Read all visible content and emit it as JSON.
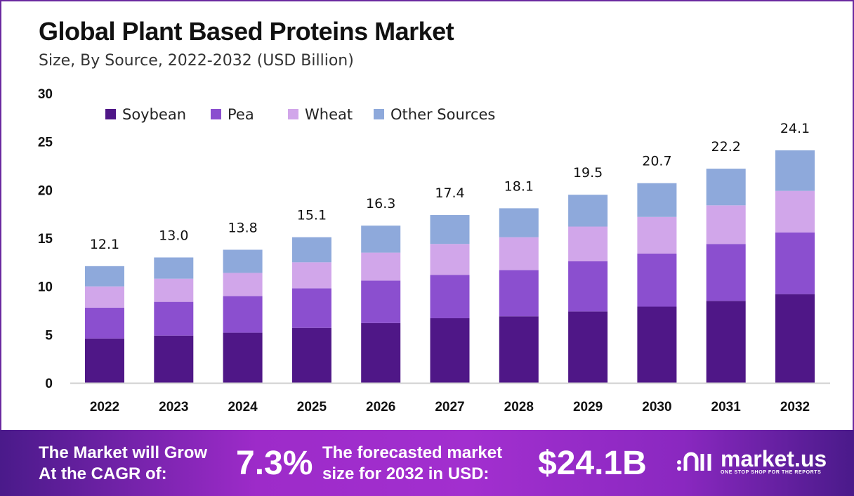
{
  "chart_data": {
    "type": "bar",
    "stacked": true,
    "title": "Global Plant Based Proteins Market",
    "subtitle": "Size, By Source, 2022-2032 (USD Billion)",
    "categories": [
      "2022",
      "2023",
      "2024",
      "2025",
      "2026",
      "2027",
      "2028",
      "2029",
      "2030",
      "2031",
      "2032"
    ],
    "series": [
      {
        "name": "Soybean",
        "color": "#4f1787",
        "values": [
          4.6,
          4.9,
          5.2,
          5.7,
          6.2,
          6.7,
          6.9,
          7.4,
          7.9,
          8.5,
          9.2
        ]
      },
      {
        "name": "Pea",
        "color": "#8b4fcf",
        "values": [
          3.2,
          3.5,
          3.8,
          4.1,
          4.4,
          4.5,
          4.8,
          5.2,
          5.5,
          5.9,
          6.4
        ]
      },
      {
        "name": "Wheat",
        "color": "#d1a6ea",
        "values": [
          2.2,
          2.4,
          2.4,
          2.7,
          2.9,
          3.2,
          3.4,
          3.6,
          3.8,
          4.0,
          4.3
        ]
      },
      {
        "name": "Other Sources",
        "color": "#8ea9db",
        "values": [
          2.1,
          2.2,
          2.4,
          2.6,
          2.8,
          3.0,
          3.0,
          3.3,
          3.5,
          3.8,
          4.2
        ]
      }
    ],
    "totals": [
      "12.1",
      "13.0",
      "13.8",
      "15.1",
      "16.3",
      "17.4",
      "18.1",
      "19.5",
      "20.7",
      "22.2",
      "24.1"
    ],
    "yticks": [
      "0",
      "5",
      "10",
      "15",
      "20",
      "25",
      "30"
    ],
    "ylim": [
      0,
      30
    ],
    "grid": false,
    "legend_position": "top-left"
  },
  "footer": {
    "cagr_label_line1": "The Market will Grow",
    "cagr_label_line2": "At the CAGR of:",
    "cagr_value": "7.3%",
    "forecast_label_line1": "The forecasted market",
    "forecast_label_line2": "size for 2032 in USD:",
    "forecast_value": "$24.1B",
    "logo_name": "market.us",
    "logo_tagline": "ONE STOP SHOP FOR THE REPORTS"
  }
}
